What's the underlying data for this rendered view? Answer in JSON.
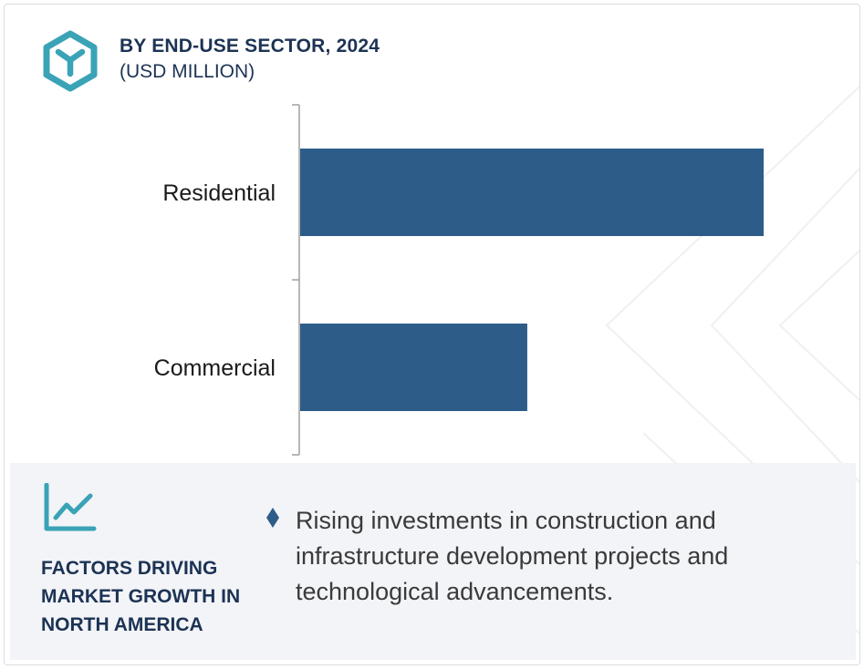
{
  "header": {
    "title": "BY END-USE SECTOR, 2024",
    "subtitle": "(USD MILLION)"
  },
  "icons": {
    "logo": "hexagon-logo-icon",
    "trend": "trend-line-icon",
    "bullet": "diamond-bullet-icon"
  },
  "colors": {
    "bar": "#2d5c89",
    "accent": "#3aa3b6",
    "navy_text": "#1c3354",
    "footer_bg": "#f3f4f8"
  },
  "chart_data": {
    "type": "bar",
    "orientation": "horizontal",
    "title": "BY END-USE SECTOR, 2024",
    "subtitle": "(USD MILLION)",
    "categories": [
      "Residential",
      "Commercial"
    ],
    "values": [
      100,
      49
    ],
    "value_scale": "relative (no value axis shown)",
    "xlim": [
      0,
      100
    ],
    "grid": false,
    "legend": "none"
  },
  "footer": {
    "factors_title": "FACTORS DRIVING\nMARKET GROWTH IN\nNORTH AMERICA",
    "driver_text": "Rising investments in construction and infrastructure development projects and technological advancements."
  }
}
